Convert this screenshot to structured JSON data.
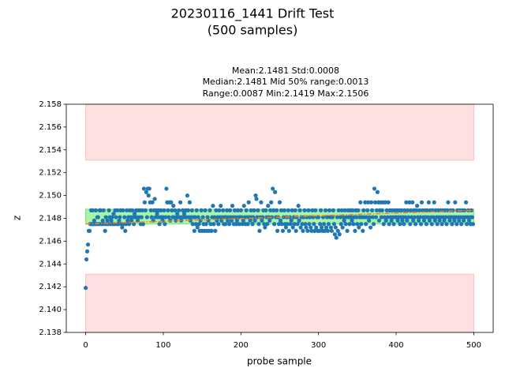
{
  "chart_data": {
    "type": "scatter",
    "title": [
      "20230116_1441 Drift Test",
      "(500 samples)"
    ],
    "annotation_lines": [
      "Mean:2.1481  Std:0.0008",
      "Median:2.1481  Mid 50% range:0.0013",
      "Range:0.0087  Min:2.1419  Max:2.1506"
    ],
    "x_label": "probe sample",
    "y_label": "z",
    "xlim": [
      -25,
      525
    ],
    "ylim": [
      2.138,
      2.158
    ],
    "xticks": [
      0,
      100,
      200,
      300,
      400,
      500
    ],
    "yticks": [
      2.138,
      {
        "value": 2.14,
        "label": "2.140"
      },
      2.142,
      2.144,
      2.146,
      2.148,
      {
        "value": 2.15,
        "label": "2.150"
      },
      2.152,
      2.154,
      2.156,
      2.158
    ],
    "bands": [
      {
        "x": [
          0,
          500
        ],
        "y": [
          2.1531,
          2.158
        ],
        "color": "#ffe0e0",
        "edge": "#f5c0c0"
      },
      {
        "x": [
          0,
          500
        ],
        "y": [
          2.138,
          2.1431
        ],
        "color": "#ffe0e0",
        "edge": "#f5c0c0"
      },
      {
        "x": [
          0,
          500
        ],
        "y": [
          2.1475,
          2.1488
        ],
        "color": "#a8f5a8",
        "edge": "#7fe07f"
      }
    ],
    "trend": {
      "x": [
        0,
        500
      ],
      "y": [
        2.1475,
        2.1487
      ],
      "color": "#ff7f0e"
    },
    "series": [
      {
        "color": "#1f77b4",
        "x": [
          0,
          1,
          2,
          3,
          4,
          5,
          6,
          7,
          8,
          9,
          10,
          11,
          12,
          13,
          14,
          15,
          16,
          17,
          18,
          19,
          20,
          21,
          22,
          23,
          24,
          25,
          26,
          27,
          28,
          29,
          30,
          31,
          32,
          33,
          34,
          35,
          36,
          37,
          38,
          39,
          40,
          41,
          42,
          43,
          44,
          45,
          46,
          47,
          48,
          49,
          50,
          51,
          52,
          53,
          54,
          55,
          56,
          57,
          58,
          59,
          60,
          61,
          62,
          63,
          64,
          65,
          66,
          67,
          68,
          69,
          70,
          71,
          72,
          73,
          74,
          75,
          76,
          77,
          78,
          79,
          80,
          81,
          82,
          83,
          84,
          85,
          86,
          87,
          88,
          89,
          90,
          91,
          92,
          93,
          94,
          95,
          96,
          97,
          98,
          99,
          100,
          101,
          102,
          103,
          104,
          105,
          106,
          107,
          108,
          109,
          110,
          111,
          112,
          113,
          114,
          115,
          116,
          117,
          118,
          119,
          120,
          121,
          122,
          123,
          124,
          125,
          126,
          127,
          128,
          129,
          130,
          131,
          132,
          133,
          134,
          135,
          136,
          137,
          138,
          139,
          140,
          141,
          142,
          143,
          144,
          145,
          146,
          147,
          148,
          149,
          150,
          151,
          152,
          153,
          154,
          155,
          156,
          157,
          158,
          159,
          160,
          161,
          162,
          163,
          164,
          165,
          166,
          167,
          168,
          169,
          170,
          171,
          172,
          173,
          174,
          175,
          176,
          177,
          178,
          179,
          180,
          181,
          182,
          183,
          184,
          185,
          186,
          187,
          188,
          189,
          190,
          191,
          192,
          193,
          194,
          195,
          196,
          197,
          198,
          199,
          200,
          201,
          202,
          203,
          204,
          205,
          206,
          207,
          208,
          209,
          210,
          211,
          212,
          213,
          214,
          215,
          216,
          217,
          218,
          219,
          220,
          221,
          222,
          223,
          224,
          225,
          226,
          227,
          228,
          229,
          230,
          231,
          232,
          233,
          234,
          235,
          236,
          237,
          238,
          239,
          240,
          241,
          242,
          243,
          244,
          245,
          246,
          247,
          248,
          249,
          250,
          251,
          252,
          253,
          254,
          255,
          256,
          257,
          258,
          259,
          260,
          261,
          262,
          263,
          264,
          265,
          266,
          267,
          268,
          269,
          270,
          271,
          272,
          273,
          274,
          275,
          276,
          277,
          278,
          279,
          280,
          281,
          282,
          283,
          284,
          285,
          286,
          287,
          288,
          289,
          290,
          291,
          292,
          293,
          294,
          295,
          296,
          297,
          298,
          299,
          300,
          301,
          302,
          303,
          304,
          305,
          306,
          307,
          308,
          309,
          310,
          311,
          312,
          313,
          314,
          315,
          316,
          317,
          318,
          319,
          320,
          321,
          322,
          323,
          324,
          325,
          326,
          327,
          328,
          329,
          330,
          331,
          332,
          333,
          334,
          335,
          336,
          337,
          338,
          339,
          340,
          341,
          342,
          343,
          344,
          345,
          346,
          347,
          348,
          349,
          350,
          351,
          352,
          353,
          354,
          355,
          356,
          357,
          358,
          359,
          360,
          361,
          362,
          363,
          364,
          365,
          366,
          367,
          368,
          369,
          370,
          371,
          372,
          373,
          374,
          375,
          376,
          377,
          378,
          379,
          380,
          381,
          382,
          383,
          384,
          385,
          386,
          387,
          388,
          389,
          390,
          391,
          392,
          393,
          394,
          395,
          396,
          397,
          398,
          399,
          400,
          401,
          402,
          403,
          404,
          405,
          406,
          407,
          408,
          409,
          410,
          411,
          412,
          413,
          414,
          415,
          416,
          417,
          418,
          419,
          420,
          421,
          422,
          423,
          424,
          425,
          426,
          427,
          428,
          429,
          430,
          431,
          432,
          433,
          434,
          435,
          436,
          437,
          438,
          439,
          440,
          441,
          442,
          443,
          444,
          445,
          446,
          447,
          448,
          449,
          450,
          451,
          452,
          453,
          454,
          455,
          456,
          457,
          458,
          459,
          460,
          461,
          462,
          463,
          464,
          465,
          466,
          467,
          468,
          469,
          470,
          471,
          472,
          473,
          474,
          475,
          476,
          477,
          478,
          479,
          480,
          481,
          482,
          483,
          484,
          485,
          486,
          487,
          488,
          489,
          490,
          491,
          492,
          493,
          494,
          495,
          496,
          497,
          498,
          499
        ],
        "values": [
          2.1419,
          2.1444,
          2.1451,
          2.1457,
          2.1469,
          2.1469,
          2.1475,
          2.1487,
          2.1475,
          2.1487,
          2.1475,
          2.1478,
          2.1475,
          2.1487,
          2.1475,
          2.1481,
          2.1481,
          2.1475,
          2.1487,
          2.1487,
          2.1475,
          2.1475,
          2.1478,
          2.1487,
          2.1475,
          2.1469,
          2.1481,
          2.1475,
          2.1478,
          2.1475,
          2.1487,
          2.1481,
          2.1475,
          2.1478,
          2.1481,
          2.1475,
          2.1484,
          2.1475,
          2.1487,
          2.1481,
          2.1475,
          2.1487,
          2.1475,
          2.1478,
          2.1481,
          2.1487,
          2.1475,
          2.1472,
          2.1487,
          2.1475,
          2.1481,
          2.1469,
          2.1475,
          2.1487,
          2.1478,
          2.1481,
          2.1475,
          2.1487,
          2.1481,
          2.1478,
          2.1487,
          2.1481,
          2.1475,
          2.1484,
          2.1481,
          2.1487,
          2.1481,
          2.1478,
          2.1487,
          2.1481,
          2.1487,
          2.1475,
          2.1481,
          2.1487,
          2.1475,
          2.1506,
          2.1494,
          2.1487,
          2.1503,
          2.1481,
          2.1506,
          2.15,
          2.1506,
          2.1494,
          2.1487,
          2.1481,
          2.1494,
          2.1478,
          2.1487,
          2.1497,
          2.1481,
          2.1487,
          2.1484,
          2.1481,
          2.1487,
          2.1475,
          2.1481,
          2.1487,
          2.1481,
          2.1478,
          2.1481,
          2.1487,
          2.1475,
          2.1481,
          2.1506,
          2.1494,
          2.1487,
          2.1481,
          2.1494,
          2.1478,
          2.1494,
          2.1487,
          2.1481,
          2.1491,
          2.1481,
          2.1487,
          2.1478,
          2.1481,
          2.1484,
          2.1481,
          2.1487,
          2.1481,
          2.1494,
          2.1478,
          2.1481,
          2.1487,
          2.1481,
          2.1484,
          2.1481,
          2.1487,
          2.1481,
          2.15,
          2.1487,
          2.1481,
          2.1494,
          2.1478,
          2.1481,
          2.1487,
          2.1475,
          2.1481,
          2.1469,
          2.1481,
          2.1475,
          2.1487,
          2.1472,
          2.1481,
          2.1475,
          2.1469,
          2.1478,
          2.1487,
          2.1469,
          2.1481,
          2.1475,
          2.1469,
          2.1487,
          2.1475,
          2.1469,
          2.1481,
          2.1478,
          2.1469,
          2.1487,
          2.1475,
          2.1469,
          2.1481,
          2.1491,
          2.1475,
          2.1481,
          2.1469,
          2.1487,
          2.1478,
          2.1481,
          2.1475,
          2.1487,
          2.1481,
          2.1491,
          2.1478,
          2.1481,
          2.1487,
          2.1475,
          2.1481,
          2.1475,
          2.1481,
          2.1487,
          2.1478,
          2.1481,
          2.1475,
          2.1487,
          2.1481,
          2.1478,
          2.1491,
          2.1481,
          2.1475,
          2.1487,
          2.1481,
          2.1475,
          2.1478,
          2.1487,
          2.1481,
          2.1475,
          2.1481,
          2.1487,
          2.1481,
          2.1475,
          2.1478,
          2.1491,
          2.1481,
          2.1475,
          2.1487,
          2.1481,
          2.1475,
          2.1494,
          2.1481,
          2.1478,
          2.1487,
          2.1481,
          2.1475,
          2.1481,
          2.1487,
          2.1478,
          2.15,
          2.1497,
          2.1481,
          2.1487,
          2.1475,
          2.1469,
          2.1481,
          2.1494,
          2.1478,
          2.1481,
          2.1487,
          2.1475,
          2.1472,
          2.1487,
          2.1481,
          2.1475,
          2.1491,
          2.1481,
          2.1478,
          2.1487,
          2.1494,
          2.1481,
          2.1506,
          2.1487,
          2.1475,
          2.1503,
          2.1481,
          2.1487,
          2.1469,
          2.1481,
          2.1475,
          2.1494,
          2.1478,
          2.1487,
          2.1475,
          2.1469,
          2.1481,
          2.1487,
          2.1475,
          2.1472,
          2.1481,
          2.1475,
          2.1487,
          2.1469,
          2.1481,
          2.1475,
          2.1478,
          2.1487,
          2.1472,
          2.1481,
          2.1475,
          2.1487,
          2.1469,
          2.1481,
          2.1475,
          2.1491,
          2.1478,
          2.1487,
          2.1472,
          2.1481,
          2.1475,
          2.1469,
          2.1481,
          2.1487,
          2.1475,
          2.1472,
          2.1481,
          2.1469,
          2.1487,
          2.1475,
          2.1481,
          2.1472,
          2.1469,
          2.1487,
          2.1481,
          2.1475,
          2.1469,
          2.1487,
          2.1472,
          2.1481,
          2.1469,
          2.1481,
          2.1469,
          2.1475,
          2.1487,
          2.1472,
          2.1469,
          2.1481,
          2.1475,
          2.1469,
          2.1487,
          2.1472,
          2.1481,
          2.1469,
          2.1475,
          2.1487,
          2.1481,
          2.1472,
          2.1469,
          2.1481,
          2.1487,
          2.1475,
          2.1466,
          2.1472,
          2.1463,
          2.1481,
          2.1469,
          2.1487,
          2.1466,
          2.1481,
          2.1475,
          2.1487,
          2.1472,
          2.1481,
          2.1478,
          2.1487,
          2.1475,
          2.1481,
          2.1469,
          2.1487,
          2.1481,
          2.1475,
          2.1487,
          2.1481,
          2.1478,
          2.1487,
          2.1475,
          2.1481,
          2.1469,
          2.1487,
          2.1481,
          2.1475,
          2.1487,
          2.1472,
          2.1481,
          2.1494,
          2.1475,
          2.1481,
          2.1469,
          2.1487,
          2.1481,
          2.1494,
          2.1475,
          2.1481,
          2.1487,
          2.1494,
          2.1478,
          2.1481,
          2.1472,
          2.1494,
          2.1487,
          2.1481,
          2.1475,
          2.1506,
          2.1494,
          2.1481,
          2.1487,
          2.1503,
          2.1494,
          2.1478,
          2.1487,
          2.1494,
          2.1481,
          2.1487,
          2.1494,
          2.1475,
          2.1481,
          2.1494,
          2.1478,
          2.1487,
          2.1481,
          2.1494,
          2.1475,
          2.1487,
          2.1481,
          2.1478,
          2.1487,
          2.1481,
          2.1475,
          2.1487,
          2.1481,
          2.1481,
          2.1487,
          2.1478,
          2.1481,
          2.1487,
          2.1475,
          2.1481,
          2.1487,
          2.1478,
          2.1481,
          2.1475,
          2.1487,
          2.1481,
          2.1494,
          2.1478,
          2.1487,
          2.1481,
          2.1494,
          2.1475,
          2.1487,
          2.1481,
          2.1494,
          2.1478,
          2.1487,
          2.1481,
          2.1475,
          2.1487,
          2.1491,
          2.1481,
          2.1478,
          2.1487,
          2.1481,
          2.1475,
          2.1494,
          2.1487,
          2.1481,
          2.1478,
          2.1487,
          2.1481,
          2.1475,
          2.1487,
          2.1481,
          2.1494,
          2.1478,
          2.1487,
          2.1481,
          2.1475,
          2.1487,
          2.1481,
          2.1494,
          2.1478,
          2.1487,
          2.1481,
          2.1475,
          2.1487,
          2.1481,
          2.1478,
          2.1487,
          2.1481,
          2.1475,
          2.1487,
          2.1481,
          2.1478,
          2.1487,
          2.1481,
          2.1475,
          2.1487,
          2.1494,
          2.1481,
          2.1478,
          2.1487,
          2.1481,
          2.1475,
          2.1487,
          2.1481,
          2.1478,
          2.1494,
          2.1481,
          2.1475,
          2.1487,
          2.1481,
          2.1478,
          2.1487,
          2.1481,
          2.1475,
          2.1487,
          2.1481,
          2.1478,
          2.1487,
          2.1481,
          2.1494,
          2.1475,
          2.1481,
          2.1487,
          2.1478,
          2.1481,
          2.1475,
          2.1487,
          2.1481,
          2.1475
        ]
      }
    ]
  }
}
